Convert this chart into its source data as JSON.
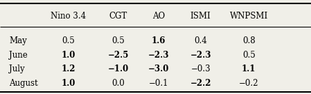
{
  "columns": [
    "",
    "Nino 3.4",
    "CGT",
    "AO",
    "ISMI",
    "WNPSMI"
  ],
  "rows": [
    [
      "May",
      "0.5",
      "0.5",
      "1.6",
      "0.4",
      "0.8"
    ],
    [
      "June",
      "1.0",
      "−2.5",
      "−2.3",
      "−2.3",
      "0.5"
    ],
    [
      "July",
      "1.2",
      "−1.0",
      "−3.0",
      "−0.3",
      "1.1"
    ],
    [
      "August",
      "1.0",
      "0.0",
      "−0.1",
      "−2.2",
      "−0.2"
    ]
  ],
  "bold_cells": {
    "0": [
      3
    ],
    "1": [
      1,
      2,
      3,
      4
    ],
    "2": [
      1,
      2,
      3,
      5
    ],
    "3": [
      1,
      4
    ]
  },
  "background_color": "#f0efe8",
  "font_size": 8.5,
  "figsize": [
    4.49,
    1.37
  ],
  "dpi": 100
}
